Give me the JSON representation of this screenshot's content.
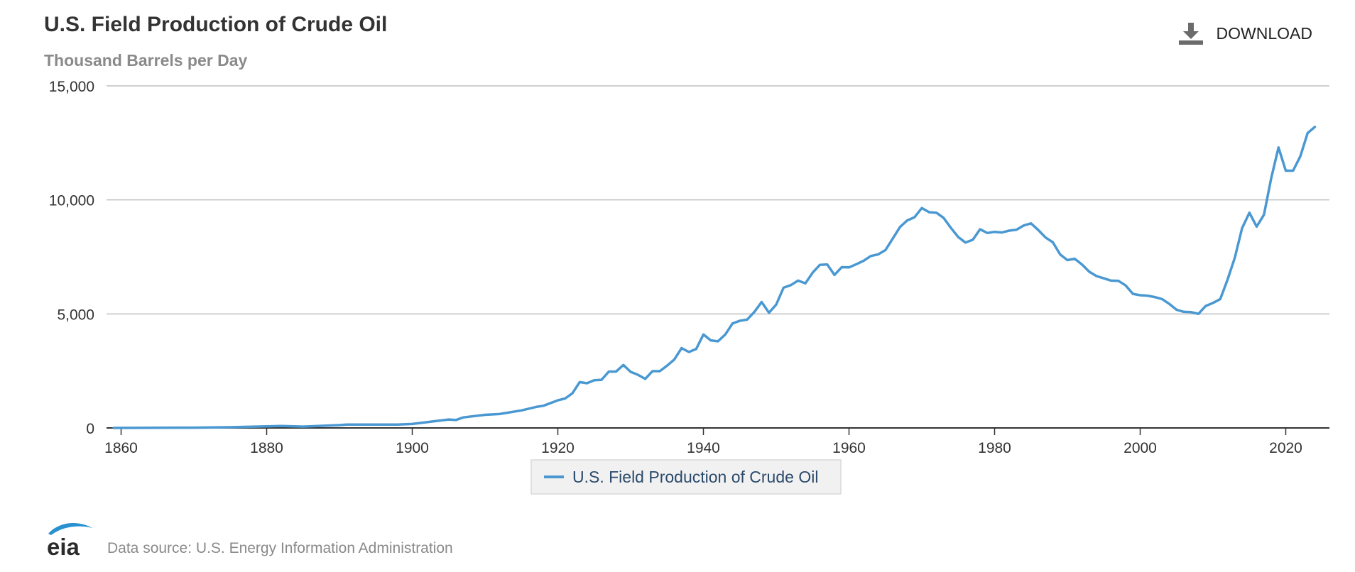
{
  "header": {
    "title": "U.S. Field Production of Crude Oil",
    "subtitle": "Thousand Barrels per Day",
    "download_label": "DOWNLOAD"
  },
  "footer": {
    "logo_text": "eia",
    "source": "Data source: U.S. Energy Information Administration"
  },
  "colors": {
    "series": "#4a98d2",
    "grid": "#bfbfbf",
    "axis": "#333333",
    "legend_bg": "#f1f1f1",
    "legend_border": "#d9d9d9",
    "legend_text": "#2b4a6b",
    "logo": "#2a91d0"
  },
  "chart_data": {
    "type": "line",
    "title": "U.S. Field Production of Crude Oil",
    "subtitle": "Thousand Barrels per Day",
    "xlabel": "",
    "ylabel": "",
    "xlim": [
      1858,
      2026
    ],
    "ylim": [
      0,
      15000
    ],
    "x_ticks": [
      1860,
      1880,
      1900,
      1920,
      1940,
      1960,
      1980,
      2000,
      2020
    ],
    "y_ticks": [
      0,
      5000,
      10000,
      15000
    ],
    "x_tick_labels": [
      "1860",
      "1880",
      "1900",
      "1920",
      "1940",
      "1960",
      "1980",
      "2000",
      "2020"
    ],
    "y_tick_labels": [
      "0",
      "5,000",
      "10,000",
      "15,000"
    ],
    "grid": true,
    "legend_position": "bottom-center",
    "series": [
      {
        "name": "U.S. Field Production of Crude Oil",
        "x": [
          1859,
          1865,
          1870,
          1875,
          1880,
          1882,
          1885,
          1890,
          1891,
          1895,
          1898,
          1900,
          1905,
          1906,
          1907,
          1910,
          1912,
          1915,
          1917,
          1918,
          1920,
          1921,
          1922,
          1923,
          1924,
          1925,
          1926,
          1927,
          1928,
          1929,
          1930,
          1931,
          1932,
          1933,
          1934,
          1935,
          1936,
          1937,
          1938,
          1939,
          1940,
          1941,
          1942,
          1943,
          1944,
          1945,
          1946,
          1947,
          1948,
          1949,
          1950,
          1951,
          1952,
          1953,
          1954,
          1955,
          1956,
          1957,
          1958,
          1959,
          1960,
          1961,
          1962,
          1963,
          1964,
          1965,
          1966,
          1967,
          1968,
          1969,
          1970,
          1971,
          1972,
          1973,
          1974,
          1975,
          1976,
          1977,
          1978,
          1979,
          1980,
          1981,
          1982,
          1983,
          1984,
          1985,
          1986,
          1987,
          1988,
          1989,
          1990,
          1991,
          1992,
          1993,
          1994,
          1995,
          1996,
          1997,
          1998,
          1999,
          2000,
          2001,
          2002,
          2003,
          2004,
          2005,
          2006,
          2007,
          2008,
          2009,
          2010,
          2011,
          2012,
          2013,
          2014,
          2015,
          2016,
          2017,
          2018,
          2019,
          2020,
          2021,
          2022,
          2023,
          2024
        ],
        "values": [
          0,
          7,
          14,
          30,
          72,
          83,
          60,
          126,
          150,
          145,
          150,
          175,
          370,
          350,
          460,
          575,
          610,
          770,
          920,
          970,
          1210,
          1290,
          1520,
          2010,
          1960,
          2090,
          2110,
          2470,
          2470,
          2760,
          2460,
          2330,
          2150,
          2490,
          2490,
          2730,
          3000,
          3500,
          3330,
          3460,
          4100,
          3840,
          3800,
          4100,
          4580,
          4700,
          4750,
          5090,
          5520,
          5050,
          5410,
          6150,
          6260,
          6460,
          6340,
          6810,
          7150,
          7170,
          6710,
          7050,
          7040,
          7180,
          7330,
          7540,
          7610,
          7800,
          8300,
          8810,
          9100,
          9240,
          9640,
          9460,
          9440,
          9210,
          8770,
          8370,
          8130,
          8250,
          8710,
          8550,
          8600,
          8570,
          8650,
          8690,
          8880,
          8970,
          8680,
          8350,
          8140,
          7610,
          7360,
          7420,
          7170,
          6850,
          6660,
          6560,
          6460,
          6450,
          6250,
          5880,
          5820,
          5800,
          5740,
          5650,
          5440,
          5180,
          5090,
          5080,
          5000,
          5350,
          5480,
          5650,
          6500,
          7470,
          8760,
          9440,
          8830,
          9350,
          10950,
          12300,
          11280,
          11280,
          11910,
          12930,
          13200
        ]
      }
    ]
  }
}
